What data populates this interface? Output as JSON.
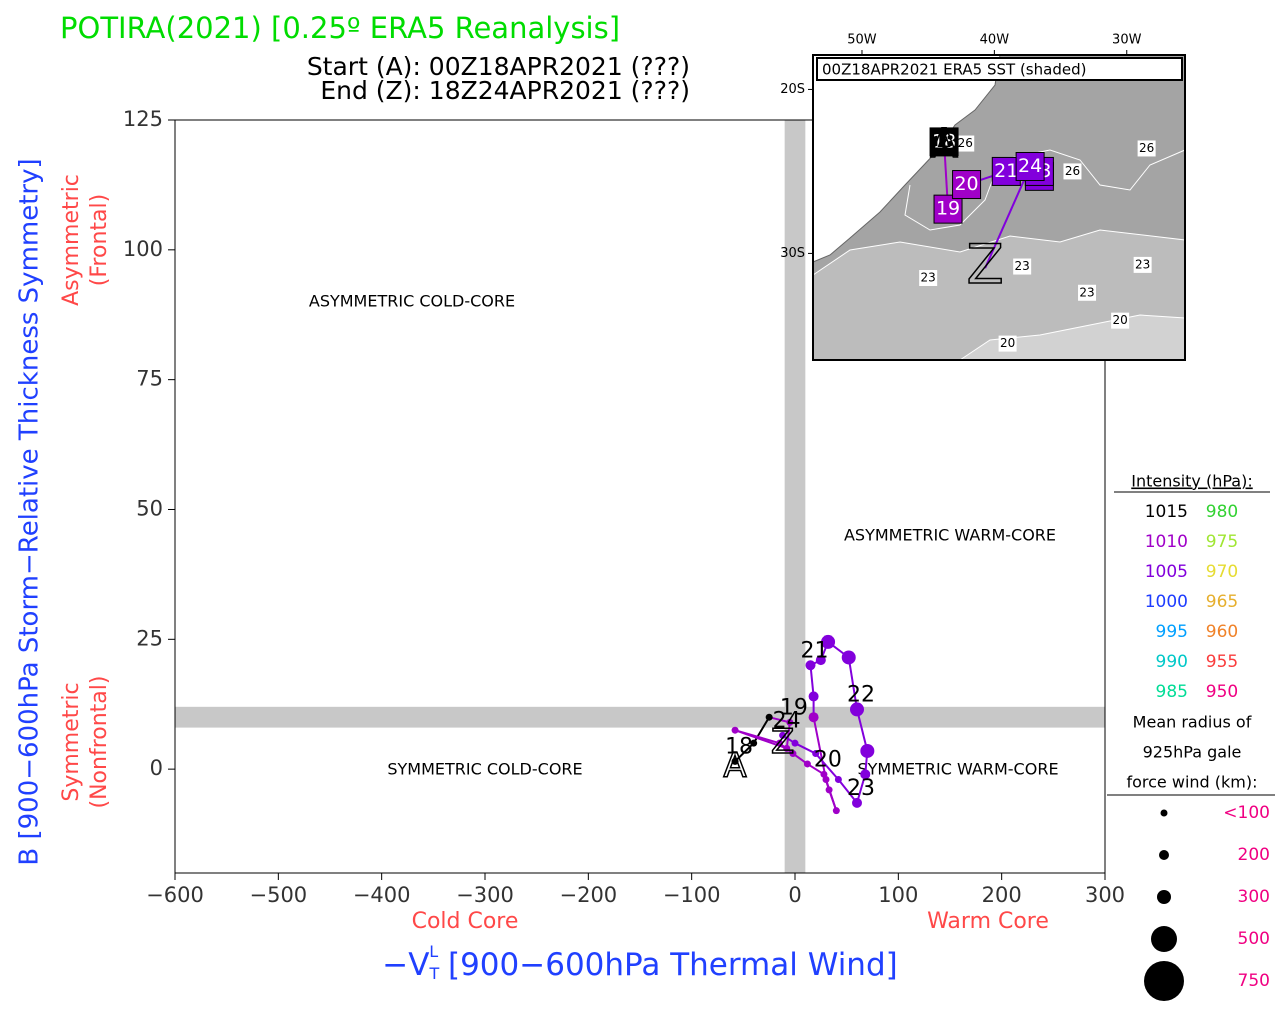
{
  "chart_data": {
    "type": "phase",
    "title": "POTIRA(2021) [0.25º ERA5 Reanalysis]",
    "subtitle_start": "Start (A): 00Z18APR2021 (???)",
    "subtitle_end": "End (Z): 18Z24APR2021 (???)",
    "ylabel": "B [900−600hPa Storm−Relative Thickness Symmetry]",
    "ylabel_upper": [
      "Asymmetric",
      "(Frontal)"
    ],
    "ylabel_lower": [
      "Symmetric",
      "(Nonfrontal)"
    ],
    "xlabel_parts": [
      "−V",
      "T",
      "L",
      " [900−600hPa Thermal Wind]"
    ],
    "xlabel_left": "Cold Core",
    "xlabel_right": "Warm Core",
    "quadrant_labels": [
      "ASYMMETRIC COLD-CORE",
      "ASYMMETRIC WARM-CORE",
      "SYMMETRIC COLD-CORE",
      "SYMMETRIC WARM-CORE"
    ],
    "xlim": [
      -600,
      300
    ],
    "ylim": [
      -20,
      125
    ],
    "xticks": [
      {
        "value": -600,
        "label": "−600"
      },
      {
        "value": -500,
        "label": "−500"
      },
      {
        "value": -400,
        "label": "−400"
      },
      {
        "value": -300,
        "label": "−300"
      },
      {
        "value": -200,
        "label": "−200"
      },
      {
        "value": -100,
        "label": "−100"
      },
      0,
      100,
      200,
      300
    ],
    "yticks": [
      0,
      25,
      50,
      75,
      100,
      125
    ],
    "thresholds": {
      "x": 0,
      "y": 10
    },
    "start_marker": "A",
    "end_marker": "Z",
    "series": [
      {
        "x": [
          -58,
          -40,
          -25,
          -5,
          -8,
          -58,
          -15,
          -2,
          12,
          28,
          33,
          40,
          30,
          18,
          18,
          15,
          25,
          32,
          52,
          60,
          70,
          68,
          60,
          42,
          20,
          0,
          -12
        ],
        "y": [
          1.5,
          5,
          10,
          9,
          4,
          7.5,
          5,
          3,
          1,
          -1,
          -4,
          -8,
          -2,
          10,
          14,
          20,
          21,
          24.5,
          21.5,
          11.5,
          3.5,
          -1,
          -6.5,
          -2,
          3,
          5,
          6.5
        ],
        "colors": [
          "#000000",
          "#000000",
          "#000000",
          "#a000c8",
          "#a000c8",
          "#a000c8",
          "#a000c8",
          "#a000c8",
          "#a000c8",
          "#a000c8",
          "#a000c8",
          "#a000c8",
          "#a000c8",
          "#a000c8",
          "#8200dc",
          "#8200dc",
          "#8200dc",
          "#8200dc",
          "#8200dc",
          "#8200dc",
          "#8200dc",
          "#8200dc",
          "#8200dc",
          "#8200dc",
          "#8200dc",
          "#8200dc",
          "#8200dc"
        ],
        "sizes": [
          100,
          100,
          100,
          100,
          100,
          100,
          100,
          100,
          100,
          100,
          100,
          100,
          100,
          200,
          200,
          200,
          200,
          300,
          300,
          300,
          300,
          200,
          200,
          100,
          100,
          100,
          100
        ],
        "labels": [
          "18",
          null,
          null,
          "19",
          null,
          null,
          null,
          null,
          null,
          "20",
          null,
          null,
          null,
          null,
          null,
          "21",
          null,
          null,
          null,
          "22",
          null,
          null,
          "23",
          null,
          null,
          null,
          "24"
        ]
      }
    ],
    "intensity_legend": {
      "title": "Intensity (hPa):",
      "levels": [
        1015,
        1010,
        1005,
        1000,
        995,
        990,
        985,
        980,
        975,
        970,
        965,
        960,
        955,
        950
      ],
      "colors": [
        "#000000",
        "#a000c8",
        "#8200dc",
        "#1e3cff",
        "#00a0ff",
        "#00c8c8",
        "#00dc96",
        "#32d232",
        "#a0e632",
        "#e6dc32",
        "#e6af2d",
        "#f08228",
        "#fa3c3c",
        "#f00082"
      ]
    },
    "size_legend": {
      "title": [
        "Mean radius of",
        "925hPa gale",
        "force wind (km):"
      ],
      "values": [
        {
          "value": 100,
          "label": "<100"
        },
        200,
        300,
        500,
        750
      ],
      "color": "#f00082"
    },
    "inset": {
      "title": "00Z18APR2021 ERA5 SST (shaded)",
      "xlim": [
        -53.7,
        -25.6
      ],
      "ylim": [
        -36.5,
        -17.9
      ],
      "xticks": [
        {
          "value": -50,
          "label": "50W"
        },
        {
          "value": -40,
          "label": "40W"
        },
        {
          "value": -30,
          "label": "30W"
        }
      ],
      "yticks": [
        {
          "value": -20,
          "label": "20S"
        },
        {
          "value": -30,
          "label": "30S"
        }
      ],
      "track": {
        "lon": [
          -43.8,
          -43.5,
          -42.1,
          -39.1,
          -36.6,
          -36.6,
          -37.3,
          -40.7
        ],
        "lat": [
          -23.2,
          -27.3,
          -25.8,
          -25.0,
          -25.3,
          -25.0,
          -24.7,
          -30.9
        ],
        "labels": [
          "18",
          "19",
          "20",
          "21",
          "22",
          "23",
          "24",
          null
        ],
        "colors": [
          "#000000",
          "#a000c8",
          "#a000c8",
          "#8200dc",
          "#8200dc",
          "#8200dc",
          "#8200dc",
          "#8200dc"
        ]
      },
      "contour_labels": {
        "text": [
          26,
          26,
          26,
          23,
          23,
          23,
          23,
          20,
          20
        ],
        "lon": [
          -42.2,
          -34.1,
          -28.5,
          -45.0,
          -37.9,
          -33.0,
          -28.8,
          -30.5,
          -39.0
        ],
        "lat": [
          -23.3,
          -25.0,
          -23.6,
          -31.5,
          -30.8,
          -32.4,
          -30.7,
          -34.1,
          -35.5
        ]
      }
    }
  }
}
